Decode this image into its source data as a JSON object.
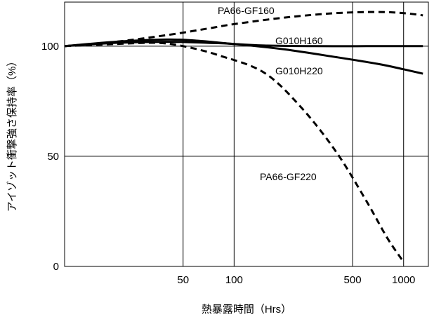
{
  "chart_data": {
    "type": "line",
    "xlabel": "熱暴露時間（Hrs）",
    "ylabel": "アイゾット衝撃強さ保持率（%）",
    "x_scale": "log",
    "xlim": [
      10,
      1400
    ],
    "ylim": [
      0,
      120
    ],
    "x_ticks": [
      50,
      100,
      500,
      1000
    ],
    "x_tick_labels": [
      "50",
      "100",
      "500",
      "1000"
    ],
    "y_ticks": [
      0,
      50,
      100
    ],
    "y_tick_labels": [
      "0",
      "50",
      "100"
    ],
    "grid": true,
    "legend": "none",
    "series": [
      {
        "name": "PA66-GF160",
        "style": "dashed",
        "color": "#000000",
        "points": [
          [
            10,
            100
          ],
          [
            20,
            102
          ],
          [
            40,
            105
          ],
          [
            70,
            108
          ],
          [
            100,
            110
          ],
          [
            200,
            113
          ],
          [
            400,
            115
          ],
          [
            700,
            115.5
          ],
          [
            1000,
            115
          ],
          [
            1300,
            114
          ]
        ]
      },
      {
        "name": "G010H160",
        "style": "solid",
        "color": "#000000",
        "points": [
          [
            10,
            100
          ],
          [
            20,
            102
          ],
          [
            40,
            103
          ],
          [
            60,
            102.5
          ],
          [
            100,
            101
          ],
          [
            150,
            100.3
          ],
          [
            300,
            100
          ],
          [
            600,
            100
          ],
          [
            1000,
            100
          ],
          [
            1300,
            100
          ]
        ]
      },
      {
        "name": "G010H220",
        "style": "solid",
        "color": "#000000",
        "points": [
          [
            10,
            100
          ],
          [
            20,
            101.5
          ],
          [
            40,
            102
          ],
          [
            70,
            101.5
          ],
          [
            100,
            101
          ],
          [
            200,
            98.5
          ],
          [
            400,
            95
          ],
          [
            700,
            92
          ],
          [
            1000,
            89.5
          ],
          [
            1300,
            87.5
          ]
        ]
      },
      {
        "name": "PA66-GF220",
        "style": "dashed",
        "color": "#000000",
        "points": [
          [
            10,
            100
          ],
          [
            20,
            101
          ],
          [
            35,
            101.5
          ],
          [
            50,
            100
          ],
          [
            80,
            96
          ],
          [
            150,
            88
          ],
          [
            250,
            72
          ],
          [
            400,
            52
          ],
          [
            600,
            30
          ],
          [
            800,
            13
          ],
          [
            1000,
            2
          ]
        ]
      }
    ]
  }
}
